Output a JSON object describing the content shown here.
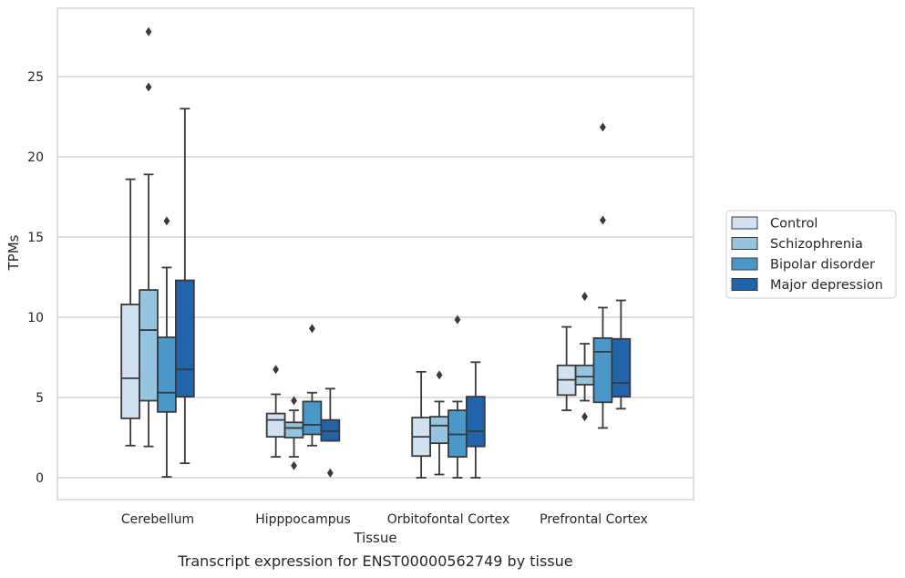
{
  "chart_data": {
    "type": "box",
    "caption": "Transcript expression for ENST00000562749 by tissue",
    "xlabel": "Tissue",
    "ylabel": "TPMs",
    "ylim": [
      -1.3,
      28.8
    ],
    "yticks": [
      0,
      5,
      10,
      15,
      20,
      25
    ],
    "grid": "horizontal",
    "legend_position": "right",
    "categories": [
      "Cerebellum",
      "Hipppocampus",
      "Orbitofontal Cortex",
      "Prefrontal Cortex"
    ],
    "series": [
      {
        "name": "Control",
        "color": "#d0e1f2",
        "boxes": [
          {
            "whislo": 2.0,
            "q1": 3.7,
            "med": 6.2,
            "q3": 10.8,
            "whishi": 18.6,
            "fliers": []
          },
          {
            "whislo": 1.3,
            "q1": 2.55,
            "med": 3.6,
            "q3": 4.0,
            "whishi": 5.2,
            "fliers": [
              6.75
            ]
          },
          {
            "whislo": 0.0,
            "q1": 1.35,
            "med": 2.55,
            "q3": 3.75,
            "whishi": 6.6,
            "fliers": []
          },
          {
            "whislo": 4.2,
            "q1": 5.15,
            "med": 6.1,
            "q3": 7.0,
            "whishi": 9.4,
            "fliers": []
          }
        ]
      },
      {
        "name": "Schizophrenia",
        "color": "#94c4df",
        "boxes": [
          {
            "whislo": 1.95,
            "q1": 4.8,
            "med": 9.2,
            "q3": 11.7,
            "whishi": 18.9,
            "fliers": [
              24.35,
              27.8
            ]
          },
          {
            "whislo": 1.3,
            "q1": 2.5,
            "med": 3.1,
            "q3": 3.45,
            "whishi": 4.2,
            "fliers": [
              0.75,
              4.8
            ]
          },
          {
            "whislo": 0.2,
            "q1": 2.15,
            "med": 3.25,
            "q3": 3.8,
            "whishi": 4.75,
            "fliers": [
              6.4
            ]
          },
          {
            "whislo": 4.8,
            "q1": 5.8,
            "med": 6.3,
            "q3": 7.0,
            "whishi": 8.35,
            "fliers": [
              3.8,
              11.3
            ]
          }
        ]
      },
      {
        "name": "Bipolar disorder",
        "color": "#4a98c9",
        "boxes": [
          {
            "whislo": 0.05,
            "q1": 4.1,
            "med": 5.3,
            "q3": 8.75,
            "whishi": 13.1,
            "fliers": [
              16.0
            ]
          },
          {
            "whislo": 2.0,
            "q1": 2.7,
            "med": 3.3,
            "q3": 4.75,
            "whishi": 5.3,
            "fliers": [
              9.3
            ]
          },
          {
            "whislo": 0.0,
            "q1": 1.3,
            "med": 2.7,
            "q3": 4.2,
            "whishi": 4.75,
            "fliers": [
              9.85
            ]
          },
          {
            "whislo": 3.1,
            "q1": 4.7,
            "med": 7.85,
            "q3": 8.7,
            "whishi": 10.6,
            "fliers": [
              16.05,
              21.85
            ]
          }
        ]
      },
      {
        "name": "Major depression",
        "color": "#2164ab",
        "boxes": [
          {
            "whislo": 0.9,
            "q1": 5.05,
            "med": 6.75,
            "q3": 12.3,
            "whishi": 23.0,
            "fliers": []
          },
          {
            "whislo": 2.3,
            "q1": 2.3,
            "med": 2.9,
            "q3": 3.6,
            "whishi": 5.55,
            "fliers": [
              0.3
            ]
          },
          {
            "whislo": 0.0,
            "q1": 1.95,
            "med": 2.9,
            "q3": 5.05,
            "whishi": 7.2,
            "fliers": []
          },
          {
            "whislo": 4.3,
            "q1": 5.05,
            "med": 5.9,
            "q3": 8.65,
            "whishi": 11.05,
            "fliers": []
          }
        ]
      }
    ]
  }
}
